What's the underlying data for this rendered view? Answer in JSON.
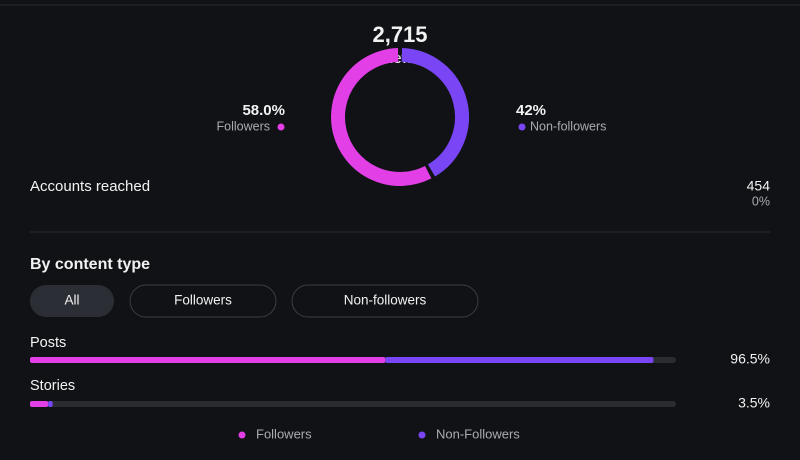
{
  "summary": {
    "views": "2,715",
    "views_caption": "Views"
  },
  "donut": {
    "segments": [
      {
        "name": "Followers",
        "value": 58.0,
        "label": "58.0%",
        "color": "#e23fe6"
      },
      {
        "name": "Non-followers",
        "value": 42,
        "label": "42%",
        "color": "#7a46f5"
      }
    ]
  },
  "accounts_reached": {
    "label": "Accounts reached",
    "value": "454",
    "change": "0%"
  },
  "content": {
    "title": "By content type",
    "tabs": [
      "All",
      "Followers",
      "Non-followers"
    ],
    "xlim": [
      0,
      100
    ],
    "rows": [
      {
        "name": "Posts",
        "total": 96.5,
        "total_label": "96.5%",
        "segments": [
          55.0,
          41.5
        ]
      },
      {
        "name": "Stories",
        "total": 3.5,
        "total_label": "3.5%",
        "segments": [
          2.8,
          0.7
        ]
      }
    ],
    "legend": [
      {
        "name": "Followers",
        "color": "#e23fe6"
      },
      {
        "name": "Non-Followers",
        "color": "#7a46f5"
      }
    ]
  }
}
